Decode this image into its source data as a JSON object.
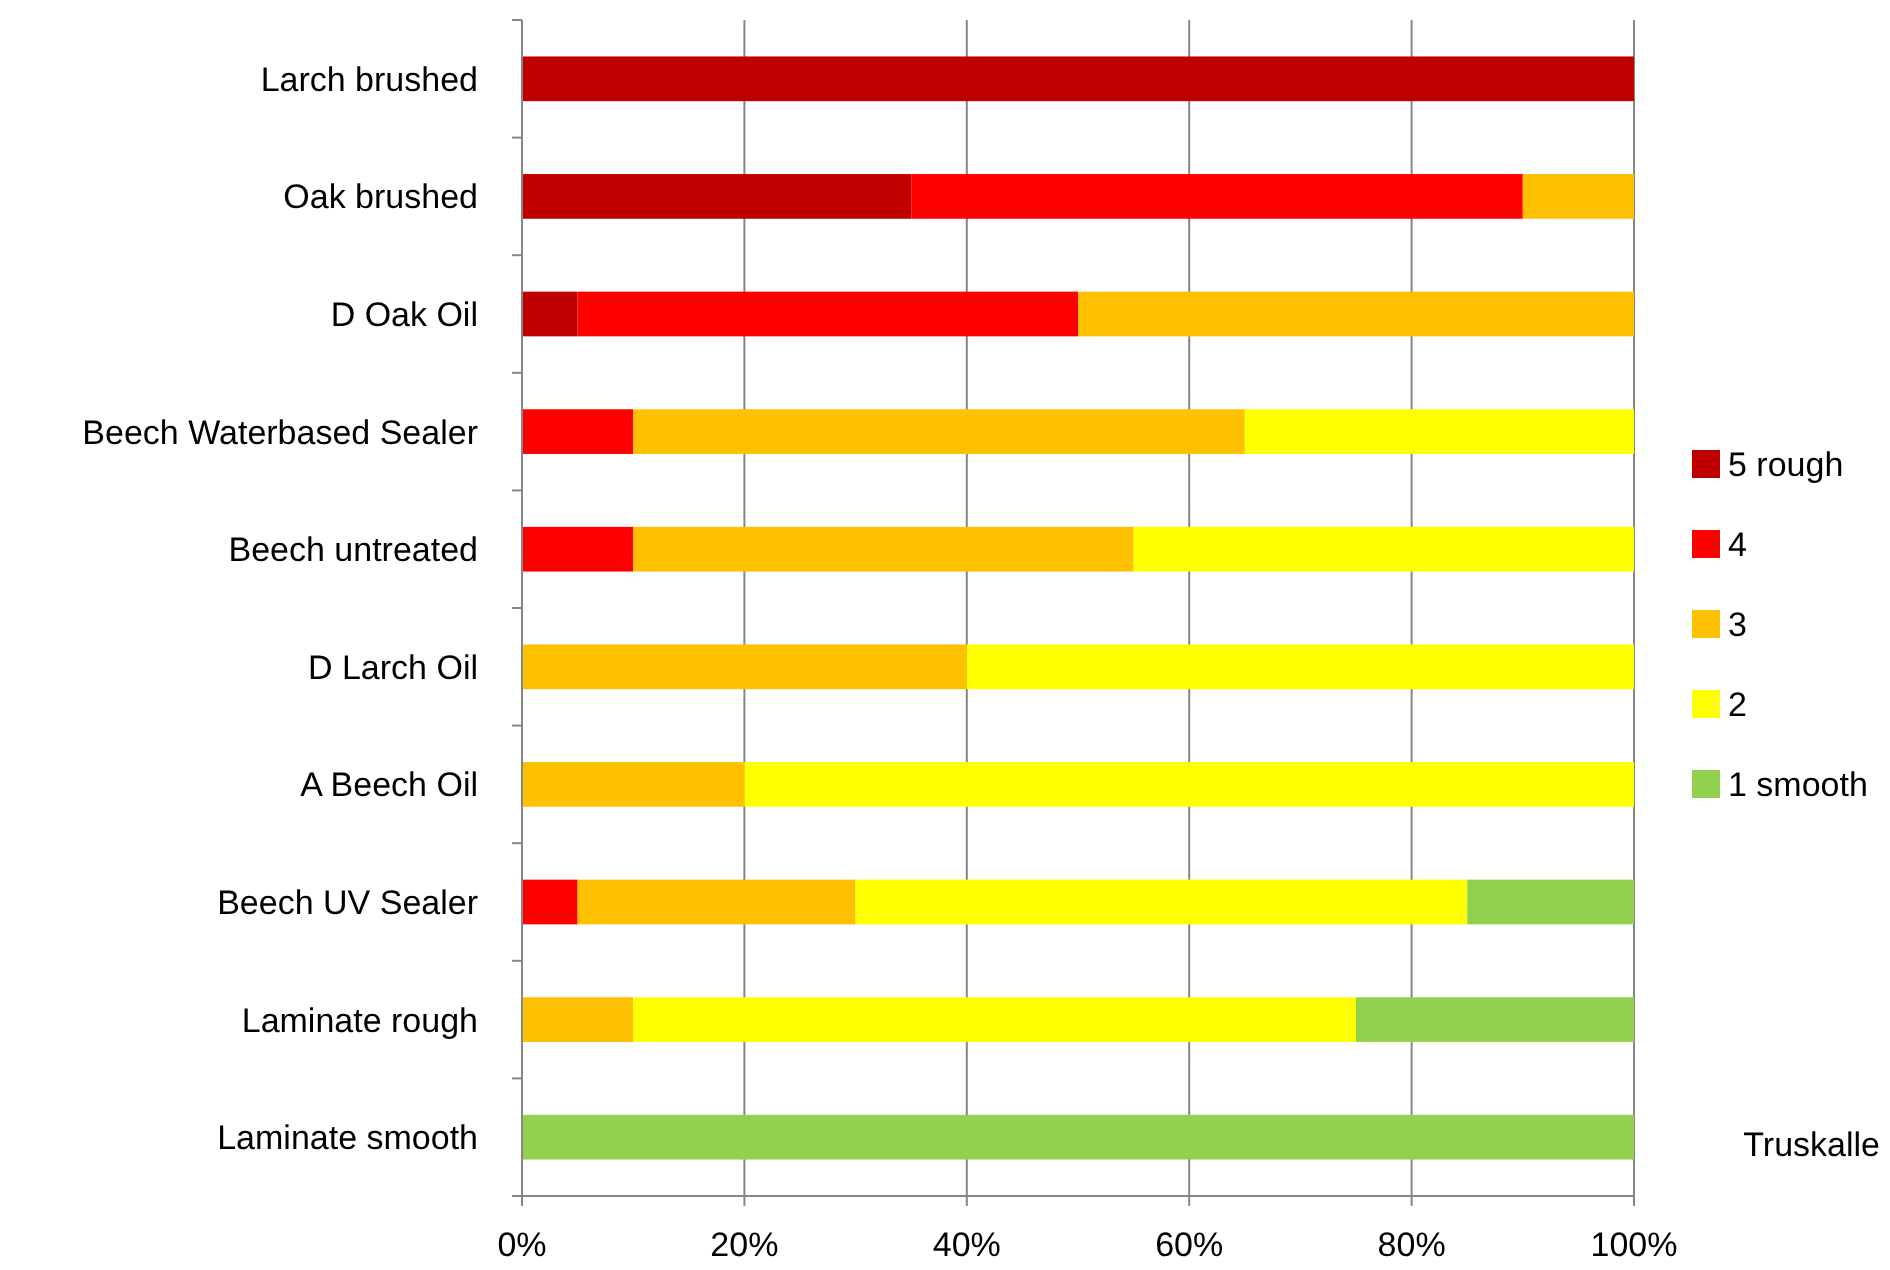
{
  "chart_data": {
    "type": "bar",
    "orientation": "horizontal",
    "stacked": true,
    "categories": [
      "Larch brushed",
      "Oak brushed",
      "D Oak Oil",
      "Beech Waterbased Sealer",
      "Beech untreated",
      "D Larch Oil",
      "A Beech Oil",
      "Beech UV Sealer",
      "Laminate rough",
      "Laminate smooth"
    ],
    "series": [
      {
        "name": "5 rough",
        "color": "#c00000",
        "values": [
          100,
          35,
          5,
          0,
          0,
          0,
          0,
          0,
          0,
          0
        ]
      },
      {
        "name": "4",
        "color": "#ff0000",
        "values": [
          0,
          55,
          45,
          10,
          10,
          0,
          0,
          5,
          0,
          0
        ]
      },
      {
        "name": "3",
        "color": "#ffc000",
        "values": [
          0,
          10,
          50,
          55,
          45,
          40,
          20,
          25,
          10,
          0
        ]
      },
      {
        "name": "2",
        "color": "#ffff00",
        "values": [
          0,
          0,
          0,
          35,
          45,
          60,
          80,
          55,
          65,
          0
        ]
      },
      {
        "name": "1 smooth",
        "color": "#92d050",
        "values": [
          0,
          0,
          0,
          0,
          0,
          0,
          0,
          15,
          25,
          100
        ]
      }
    ],
    "xlim": [
      0,
      100
    ],
    "xticks": [
      {
        "value": 0,
        "label": "0%"
      },
      {
        "value": 20,
        "label": "20%"
      },
      {
        "value": 40,
        "label": "40%"
      },
      {
        "value": 60,
        "label": "60%"
      },
      {
        "value": 80,
        "label": "80%"
      },
      {
        "value": 100,
        "label": "100%"
      }
    ],
    "grid": "x",
    "legend": "right",
    "annotations": [
      "Truskalle"
    ]
  }
}
